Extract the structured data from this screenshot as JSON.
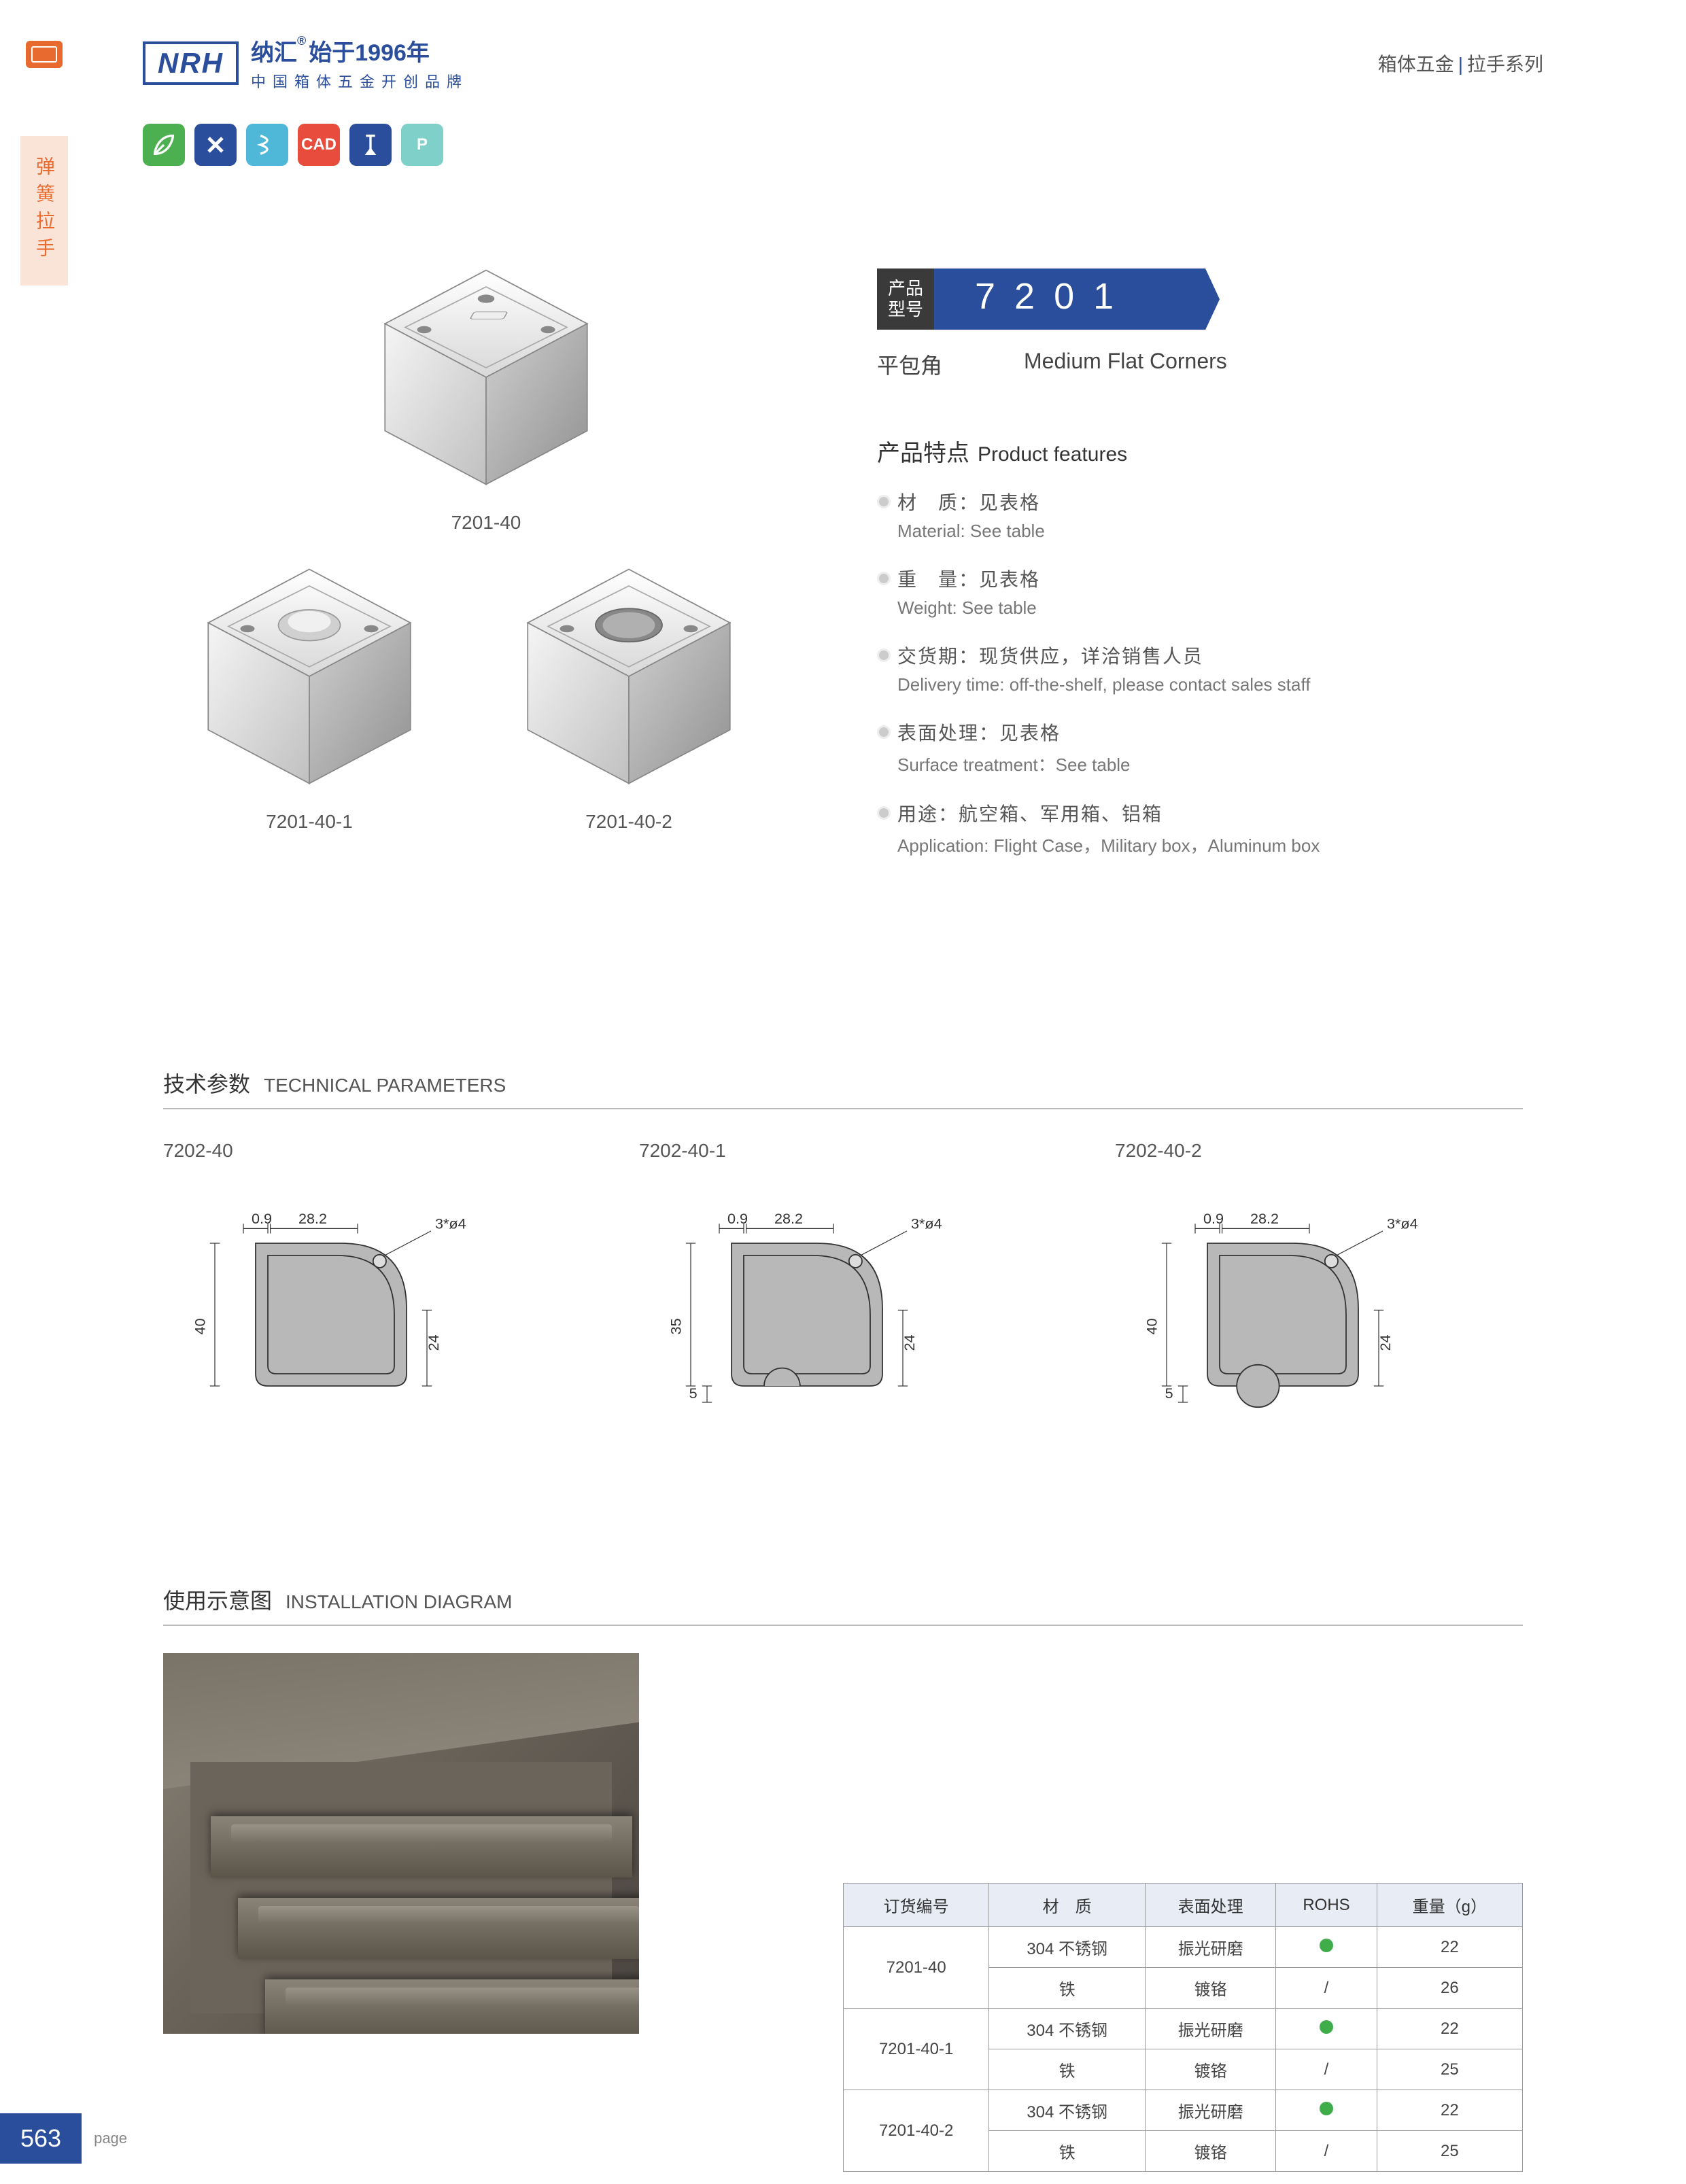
{
  "header": {
    "logo": "NRH",
    "brand_cn_prefix": "纳汇",
    "brand_cn_year": "始于1996年",
    "brand_tagline": "中国箱体五金开创品牌",
    "category_l1": "箱体五金",
    "category_l2": "拉手系列"
  },
  "side_tab": "弹簧拉手",
  "param_icons": [
    {
      "name": "leaf-icon",
      "glyph": "leaf",
      "bg": "#4caf50"
    },
    {
      "name": "tools-icon",
      "glyph": "tools",
      "bg": "#2a4e9b"
    },
    {
      "name": "spring-icon",
      "glyph": "spring",
      "bg": "#4fb8d8"
    },
    {
      "name": "cad-icon",
      "glyph": "CAD",
      "bg": "#e74c3c"
    },
    {
      "name": "screw-icon",
      "glyph": "screw",
      "bg": "#2a4e9b"
    },
    {
      "name": "p-icon",
      "glyph": "P",
      "bg": "#7fd0c8"
    }
  ],
  "products_shown": [
    {
      "code": "7201-40",
      "variant": "plain"
    },
    {
      "code": "7201-40-1",
      "variant": "ball"
    },
    {
      "code": "7201-40-2",
      "variant": "cup"
    }
  ],
  "info": {
    "model_label_l1": "产品",
    "model_label_l2": "型号",
    "model_number": "7201",
    "name_cn": "平包角",
    "name_en": "Medium Flat Corners",
    "features_title_cn": "产品特点",
    "features_title_en": "Product features",
    "features": [
      {
        "cn": "材　质：见表格",
        "en": "Material: See table"
      },
      {
        "cn": "重　量：见表格",
        "en": "Weight: See table"
      },
      {
        "cn": "交货期：现货供应，详洽销售人员",
        "en": "Delivery time: off-the-shelf, please contact sales staff"
      },
      {
        "cn": "表面处理：见表格",
        "en": "Surface treatment：See table"
      },
      {
        "cn": "用途：航空箱、军用箱、铝箱",
        "en": "Application: Flight Case，Military box，Aluminum box"
      }
    ]
  },
  "tech": {
    "title_cn": "技术参数",
    "title_en": "TECHNICAL PARAMETERS",
    "diagrams": [
      {
        "label": "7202-40",
        "dims": {
          "thickness": "0.9",
          "width": "28.2",
          "holes": "3*ø4",
          "height": "40",
          "h2": "24"
        },
        "variant": "plain"
      },
      {
        "label": "7202-40-1",
        "dims": {
          "thickness": "0.9",
          "width": "28.2",
          "holes": "3*ø4",
          "height": "35",
          "h2": "24",
          "h3": "5"
        },
        "variant": "bump"
      },
      {
        "label": "7202-40-2",
        "dims": {
          "thickness": "0.9",
          "width": "28.2",
          "holes": "3*ø4",
          "height": "40",
          "h2": "24",
          "h3": "5"
        },
        "variant": "ball"
      }
    ]
  },
  "install": {
    "title_cn": "使用示意图",
    "title_en": "INSTALLATION DIAGRAM"
  },
  "spec_table": {
    "headers": [
      "订货编号",
      "材　质",
      "表面处理",
      "ROHS",
      "重量（g）"
    ],
    "rohs_green": "#3fae4a",
    "groups": [
      {
        "code": "7201-40",
        "rows": [
          {
            "material": "304 不锈钢",
            "finish": "振光研磨",
            "rohs": true,
            "weight": "22"
          },
          {
            "material": "铁",
            "finish": "镀铬",
            "rohs": false,
            "weight": "26"
          }
        ]
      },
      {
        "code": "7201-40-1",
        "rows": [
          {
            "material": "304 不锈钢",
            "finish": "振光研磨",
            "rohs": true,
            "weight": "22"
          },
          {
            "material": "铁",
            "finish": "镀铬",
            "rohs": false,
            "weight": "25"
          }
        ]
      },
      {
        "code": "7201-40-2",
        "rows": [
          {
            "material": "304 不锈钢",
            "finish": "振光研磨",
            "rohs": true,
            "weight": "22"
          },
          {
            "material": "铁",
            "finish": "镀铬",
            "rohs": false,
            "weight": "25"
          }
        ]
      }
    ]
  },
  "footer": {
    "page_number": "563",
    "page_label": "page"
  },
  "colors": {
    "primary": "#2a4e9b",
    "accent_orange": "#e86a2e",
    "diagram_fill": "#b8b8b8",
    "diagram_stroke": "#333",
    "metal_light": "#e8e8e8",
    "metal_mid": "#c8c8c8",
    "metal_dark": "#888"
  }
}
